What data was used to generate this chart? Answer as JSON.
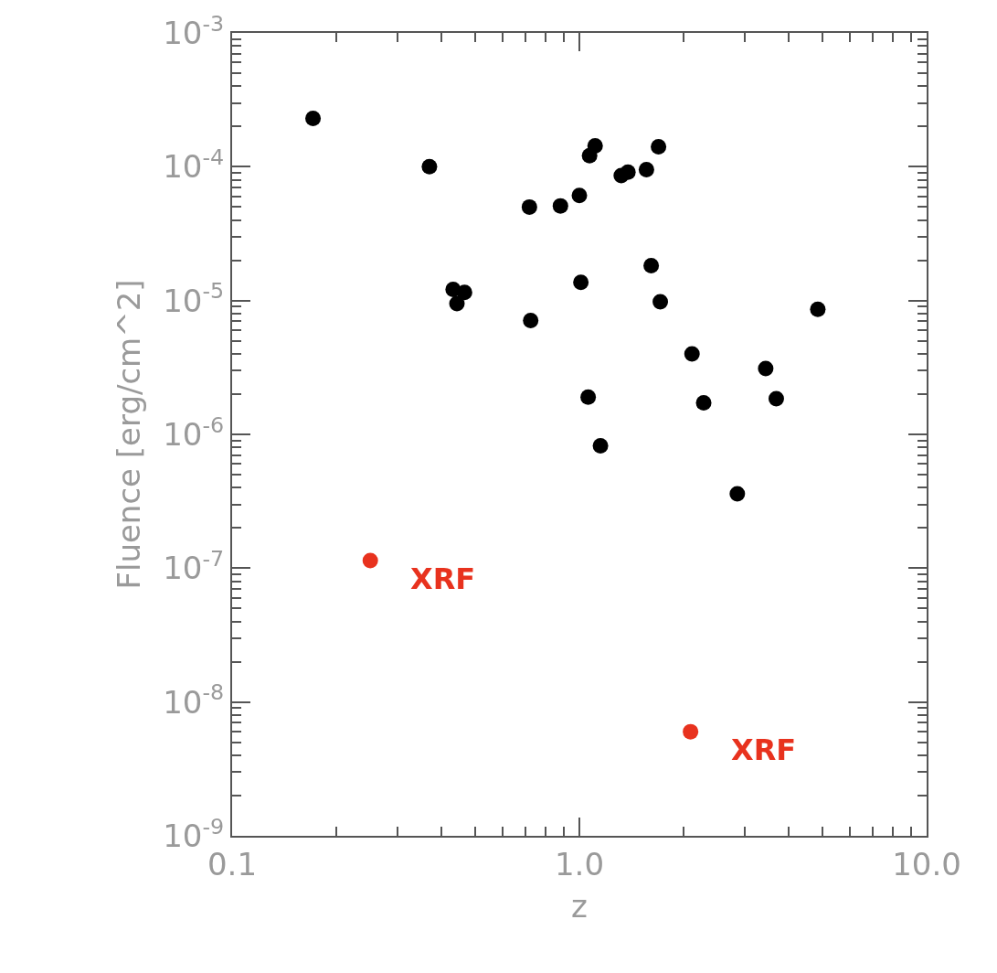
{
  "chart_data": {
    "type": "scatter",
    "xlabel": "z",
    "ylabel": "Fluence [erg/cm^2]",
    "log": "xy",
    "marker": "circle",
    "xlim": [
      0.1,
      10
    ],
    "xticks": [
      0.1,
      {
        "value": 1,
        "label": "1.0"
      },
      {
        "value": 10,
        "label": "10.0"
      }
    ],
    "ylim": [
      1e-09,
      0.001
    ],
    "yticks": [
      {
        "value": 1e-09,
        "label": "10$^{-9}$"
      },
      {
        "value": 1e-08,
        "label": "10$^{-8}$"
      },
      {
        "value": 1e-07,
        "label": "10$^{-7}$"
      },
      {
        "value": 1e-06,
        "label": "10$^{-6}$"
      },
      {
        "value": 1e-05,
        "label": "10$^{-5}$"
      },
      {
        "value": 0.0001,
        "label": "10$^{-4}$"
      },
      {
        "value": 0.001,
        "label": "10$^{-3}$"
      }
    ],
    "series": [
      {
        "color": "#000000",
        "x": [
          0.171,
          0.37,
          0.718,
          0.882,
          1.0,
          1.07,
          1.11,
          0.433,
          0.467,
          0.444,
          1.01,
          0.724,
          1.06,
          1.69,
          1.32,
          1.38,
          1.56,
          1.61,
          1.71,
          4.86,
          2.11,
          3.44,
          2.28,
          3.69,
          1.15,
          2.85
        ],
        "values": [
          0.00023,
          0.0001,
          5e-05,
          5.1e-05,
          6.1e-05,
          0.000121,
          0.000143,
          1.21e-05,
          1.15e-05,
          9.5e-06,
          1.37e-05,
          7.1e-06,
          1.9e-06,
          0.000141,
          8.6e-05,
          9.1e-05,
          9.5e-05,
          1.82e-05,
          9.8e-06,
          8.6e-06,
          4e-06,
          3.1e-06,
          1.72e-06,
          1.85e-06,
          8.2e-07,
          3.6e-07
        ]
      },
      {
        "color": "#e8321e",
        "x": [
          0.25,
          2.09
        ],
        "values": [
          1.14e-07,
          6e-09
        ]
      }
    ],
    "annotations": [
      {
        "text": "XRF",
        "x": 0.25,
        "y": 1.14e-07
      },
      {
        "text": "XRF",
        "x": 2.09,
        "y": 6e-09
      }
    ]
  }
}
